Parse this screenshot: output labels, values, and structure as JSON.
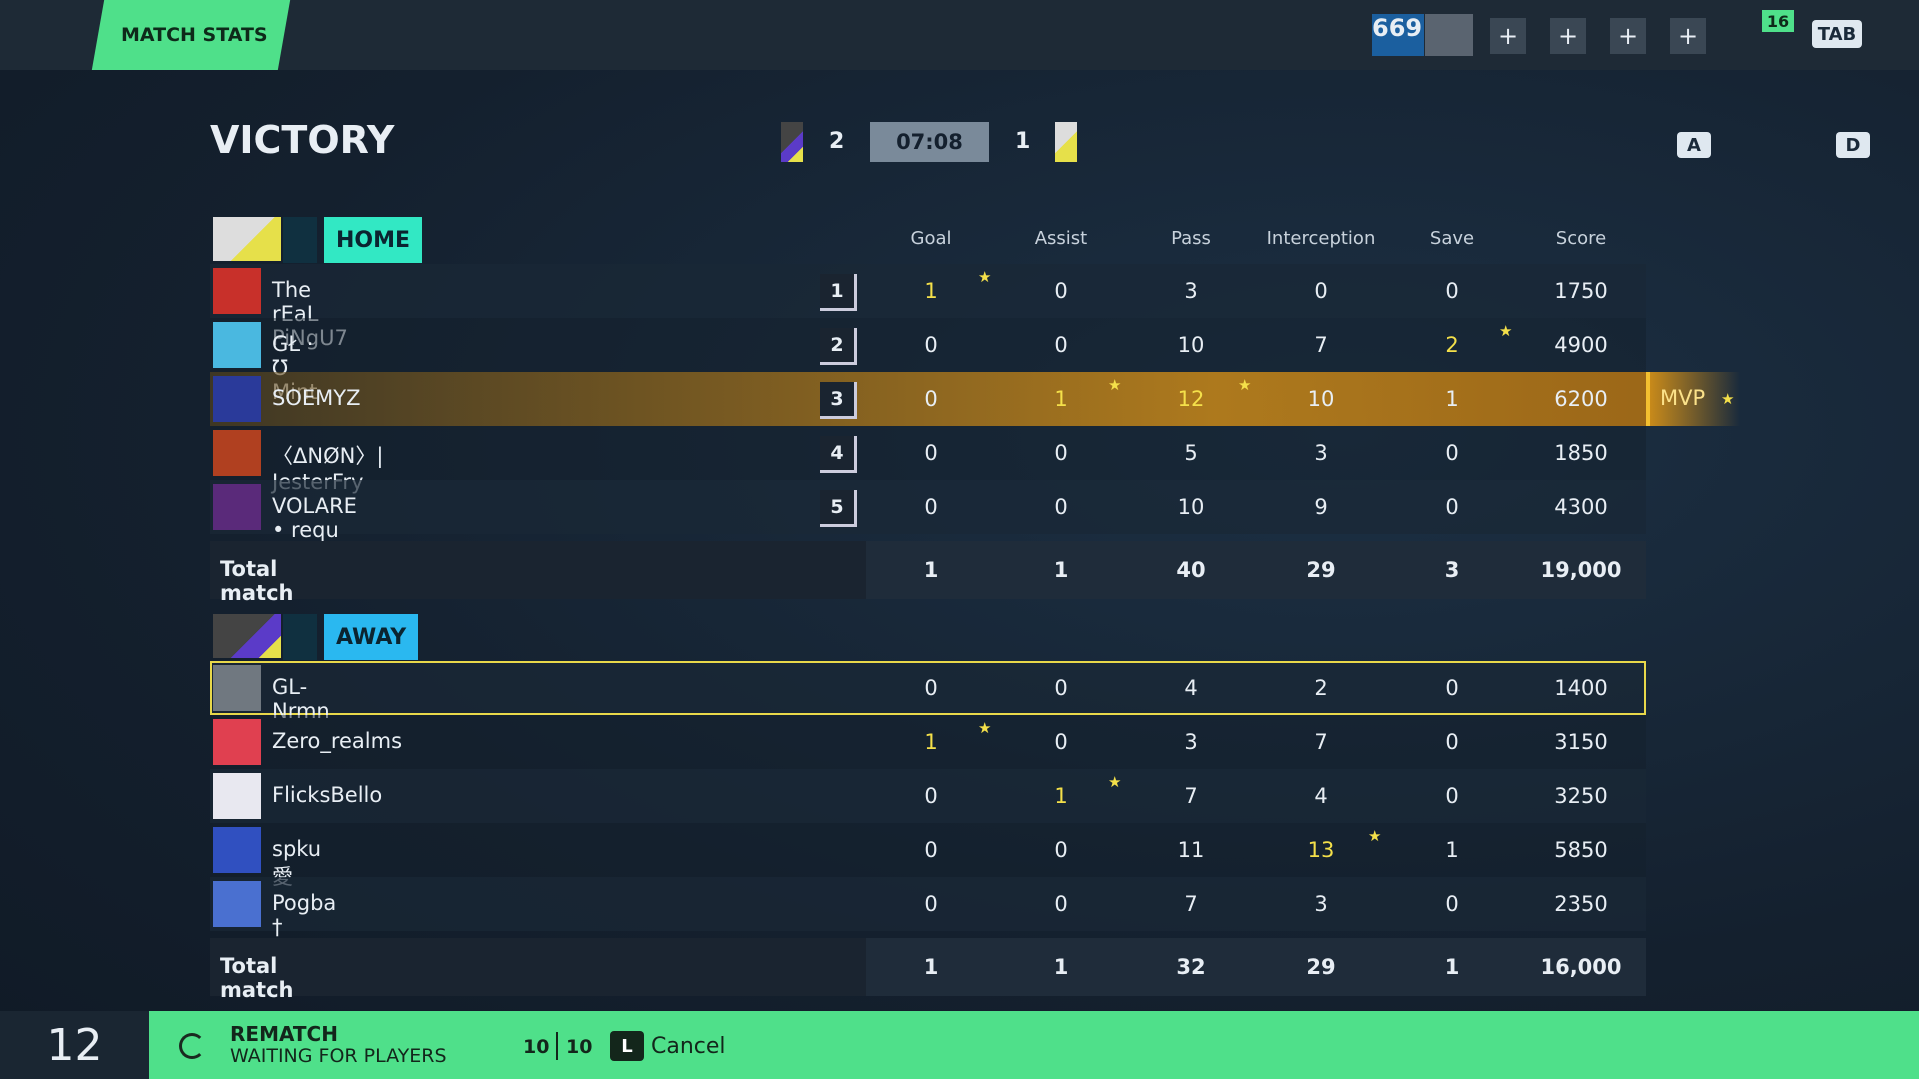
{
  "header": {
    "tab": "MATCH STATS",
    "level": "669",
    "friends": "16",
    "tab_key": "TAB"
  },
  "result": {
    "title": "VICTORY",
    "home_score": "2",
    "time": "07:08",
    "away_score": "1"
  },
  "controls": {
    "left_key": "A",
    "right_key": "D"
  },
  "table": {
    "columns": [
      "Goal",
      "Assist",
      "Pass",
      "Interception",
      "Save",
      "Score"
    ],
    "teams": [
      {
        "name": "HOME",
        "players": [
          {
            "name": "The rEaL PiNgU7",
            "rank": "1",
            "stats": [
              1,
              0,
              3,
              0,
              0,
              1750
            ],
            "stars": [
              0
            ]
          },
          {
            "name": "GŁ · Ʊ Mint",
            "rank": "2",
            "stats": [
              0,
              0,
              10,
              7,
              2,
              4900
            ],
            "stars": [
              4
            ]
          },
          {
            "name": "SOEMYZ",
            "rank": "3",
            "stats": [
              0,
              1,
              12,
              10,
              1,
              6200
            ],
            "stars": [
              1,
              2
            ],
            "mvp": "MVP"
          },
          {
            "name": "〈ΔNØN〉| JesterFry",
            "rank": "4",
            "stats": [
              0,
              0,
              5,
              3,
              0,
              1850
            ],
            "stars": []
          },
          {
            "name": "VOLARE • requ",
            "rank": "5",
            "stats": [
              0,
              0,
              10,
              9,
              0,
              4300
            ],
            "stars": []
          }
        ],
        "total_label": "Total match",
        "totals": [
          "1",
          "1",
          "40",
          "29",
          "3",
          "19,000"
        ]
      },
      {
        "name": "AWAY",
        "players": [
          {
            "name": "GL-Nrmn",
            "stats": [
              0,
              0,
              4,
              2,
              0,
              1400
            ],
            "stars": [],
            "self": true
          },
          {
            "name": "Zero_realms",
            "stats": [
              1,
              0,
              3,
              7,
              0,
              3150
            ],
            "stars": [
              0
            ]
          },
          {
            "name": "FlicksBello",
            "stats": [
              0,
              1,
              7,
              4,
              0,
              3250
            ],
            "stars": [
              1
            ]
          },
          {
            "name": "spku 愛",
            "stats": [
              0,
              0,
              11,
              13,
              1,
              5850
            ],
            "stars": [
              3
            ]
          },
          {
            "name": "Pogba †",
            "stats": [
              0,
              0,
              7,
              3,
              0,
              2350
            ],
            "stars": []
          }
        ],
        "total_label": "Total match",
        "totals": [
          "1",
          "1",
          "32",
          "29",
          "1",
          "16,000"
        ]
      }
    ]
  },
  "footer": {
    "countdown": "12",
    "rematch": "REMATCH",
    "status": "WAITING FOR PLAYERS",
    "players_ready": "10",
    "players_total": "10",
    "cancel_key": "L",
    "cancel": "Cancel"
  }
}
